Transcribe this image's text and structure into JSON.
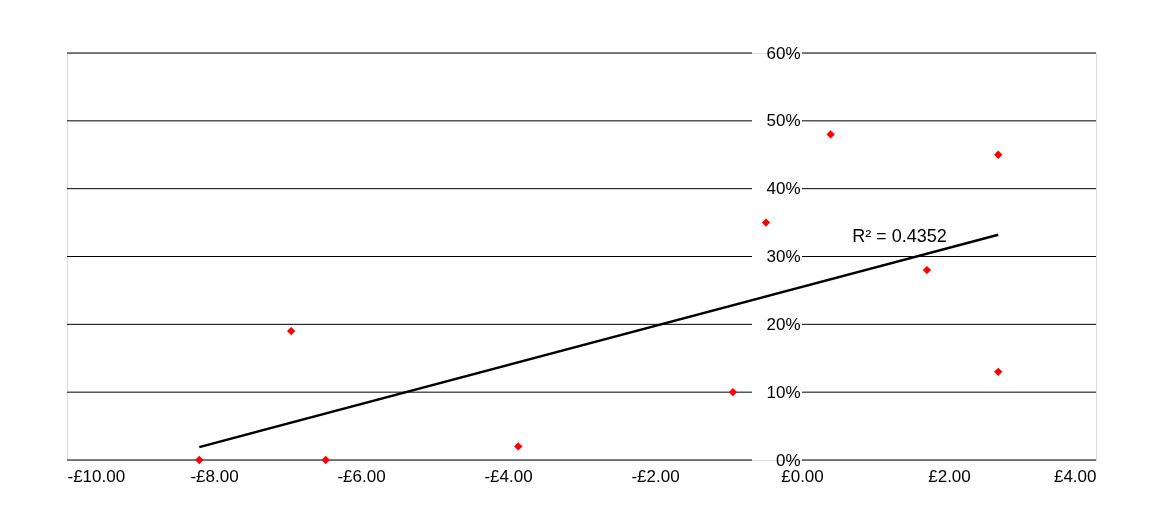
{
  "chart_data": {
    "type": "scatter",
    "series": [
      {
        "color": "#ff0000",
        "marker": "diamond",
        "x": [
          -8.2,
          -6.95,
          -6.48,
          -3.86,
          -0.94,
          -0.49,
          0.39,
          1.7,
          2.67,
          2.67
        ],
        "values": [
          0,
          19,
          0,
          2,
          10,
          35,
          48,
          28,
          45,
          13
        ]
      },
      {
        "type": "line",
        "color": "#000000",
        "marker": "none",
        "line_style": "solid",
        "x": [
          -8.2,
          2.67
        ],
        "values": [
          1.9,
          33.2
        ]
      }
    ],
    "annotations": [
      "R² = 0.4352"
    ],
    "xlim": [
      -10,
      4
    ],
    "xticks": [
      {
        "value": -10,
        "label": "-£10.00"
      },
      {
        "value": -8,
        "label": "-£8.00"
      },
      {
        "value": -6,
        "label": "-£6.00"
      },
      {
        "value": -4,
        "label": "-£4.00"
      },
      {
        "value": -2,
        "label": "-£2.00"
      },
      {
        "value": 0,
        "label": "£0.00"
      },
      {
        "value": 2,
        "label": "£2.00"
      },
      {
        "value": 4,
        "label": "£4.00"
      }
    ],
    "ylim": [
      0,
      60
    ],
    "yticks": [
      {
        "value": 0,
        "label": "0%"
      },
      {
        "value": 10,
        "label": "10%"
      },
      {
        "value": 20,
        "label": "20%"
      },
      {
        "value": 30,
        "label": "30%"
      },
      {
        "value": 40,
        "label": "40%"
      },
      {
        "value": 50,
        "label": "50%"
      },
      {
        "value": 60,
        "label": "60%"
      }
    ],
    "grid": "y"
  }
}
